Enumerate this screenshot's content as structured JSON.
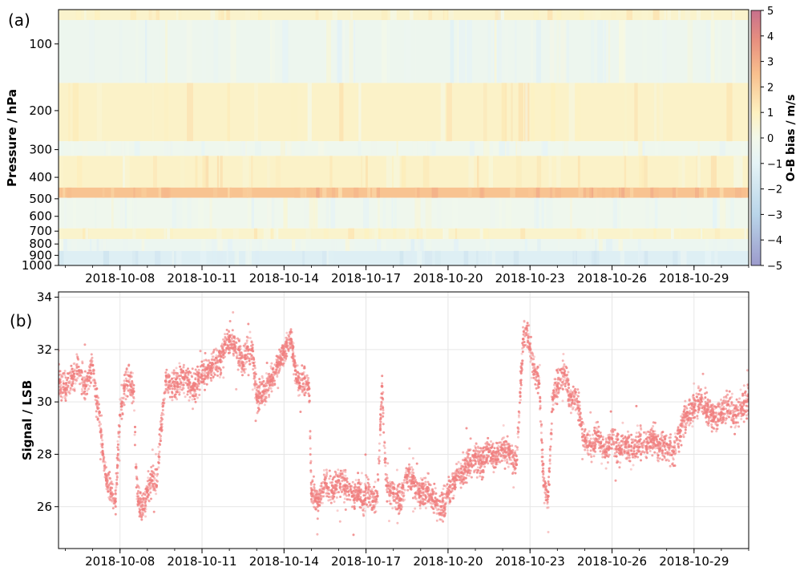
{
  "chart_data": [
    {
      "type": "heatmap",
      "panel_label": "(a)",
      "ylabel": "Pressure / hPa",
      "yscale": "log",
      "yaxis_inverted": true,
      "ylim": [
        1000,
        70
      ],
      "y_ticks": [
        100,
        200,
        300,
        400,
        500,
        600,
        700,
        800,
        900,
        1000
      ],
      "xlim": [
        "2018-10-05T18:00",
        "2018-10-31T00:00"
      ],
      "x_ticks": [
        "2018-10-08",
        "2018-10-11",
        "2018-10-14",
        "2018-10-17",
        "2018-10-20",
        "2018-10-23",
        "2018-10-26",
        "2018-10-29"
      ],
      "colorbar": {
        "label": "O-B bias / m/s",
        "range": [
          -5,
          5
        ],
        "ticks": [
          5,
          4,
          3,
          2,
          1,
          0,
          -1,
          -2,
          -3,
          -4,
          -5
        ],
        "colormap": "RdYlBu_r (semi-transparent)"
      },
      "layers": [
        {
          "p_top": 70,
          "p_bottom": 78,
          "bias": 0.7
        },
        {
          "p_top": 78,
          "p_bottom": 150,
          "bias": -0.4
        },
        {
          "p_top": 150,
          "p_bottom": 275,
          "bias": 0.8
        },
        {
          "p_top": 275,
          "p_bottom": 320,
          "bias": -0.3
        },
        {
          "p_top": 320,
          "p_bottom": 445,
          "bias": 0.8
        },
        {
          "p_top": 445,
          "p_bottom": 495,
          "bias": 2.4
        },
        {
          "p_top": 495,
          "p_bottom": 680,
          "bias": -0.3
        },
        {
          "p_top": 680,
          "p_bottom": 760,
          "bias": 0.7
        },
        {
          "p_top": 760,
          "p_bottom": 860,
          "bias": -0.5
        },
        {
          "p_top": 860,
          "p_bottom": 1000,
          "bias": -1.3
        }
      ]
    },
    {
      "type": "scatter",
      "panel_label": "(b)",
      "ylabel": "Signal / LSB",
      "ylim": [
        24.4,
        34.2
      ],
      "y_ticks": [
        26,
        28,
        30,
        32,
        34
      ],
      "xlim": [
        "2018-10-05T18:00",
        "2018-10-31T00:00"
      ],
      "x_ticks": [
        "2018-10-08",
        "2018-10-11",
        "2018-10-14",
        "2018-10-17",
        "2018-10-20",
        "2018-10-23",
        "2018-10-26",
        "2018-10-29"
      ],
      "grid": true,
      "point_color": "#f08080",
      "points": [
        [
          "2018-10-05T18:00",
          30.8
        ],
        [
          "2018-10-06T00:00",
          30.5
        ],
        [
          "2018-10-06T06:00",
          30.9
        ],
        [
          "2018-10-06T12:00",
          31.2
        ],
        [
          "2018-10-06T18:00",
          30.6
        ],
        [
          "2018-10-07T00:00",
          31.4
        ],
        [
          "2018-10-07T03:00",
          30.2
        ],
        [
          "2018-10-07T06:00",
          29.6
        ],
        [
          "2018-10-07T09:00",
          28.0
        ],
        [
          "2018-10-07T12:00",
          27.0
        ],
        [
          "2018-10-07T16:00",
          26.5
        ],
        [
          "2018-10-07T20:00",
          26.2
        ],
        [
          "2018-10-08T00:00",
          29.5
        ],
        [
          "2018-10-08T04:00",
          30.6
        ],
        [
          "2018-10-08T08:00",
          31.0
        ],
        [
          "2018-10-08T12:00",
          30.4
        ],
        [
          "2018-10-08T14:00",
          27.5
        ],
        [
          "2018-10-08T16:00",
          26.2
        ],
        [
          "2018-10-08T20:00",
          25.9
        ],
        [
          "2018-10-09T00:00",
          26.6
        ],
        [
          "2018-10-09T04:00",
          27.0
        ],
        [
          "2018-10-09T08:00",
          26.8
        ],
        [
          "2018-10-09T12:00",
          29.0
        ],
        [
          "2018-10-09T16:00",
          30.8
        ],
        [
          "2018-10-10T00:00",
          30.6
        ],
        [
          "2018-10-10T08:00",
          30.9
        ],
        [
          "2018-10-10T16:00",
          30.5
        ],
        [
          "2018-10-11T00:00",
          31.0
        ],
        [
          "2018-10-11T08:00",
          31.3
        ],
        [
          "2018-10-11T16:00",
          31.6
        ],
        [
          "2018-10-11T20:00",
          32.2
        ],
        [
          "2018-10-12T00:00",
          32.3
        ],
        [
          "2018-10-12T08:00",
          32.0
        ],
        [
          "2018-10-12T12:00",
          31.4
        ],
        [
          "2018-10-12T16:00",
          32.1
        ],
        [
          "2018-10-12T20:00",
          32.0
        ],
        [
          "2018-10-13T00:00",
          30.2
        ],
        [
          "2018-10-13T06:00",
          30.4
        ],
        [
          "2018-10-13T12:00",
          30.8
        ],
        [
          "2018-10-13T18:00",
          31.4
        ],
        [
          "2018-10-14T00:00",
          31.9
        ],
        [
          "2018-10-14T06:00",
          32.4
        ],
        [
          "2018-10-14T10:00",
          31.2
        ],
        [
          "2018-10-14T14:00",
          30.6
        ],
        [
          "2018-10-14T18:00",
          30.9
        ],
        [
          "2018-10-14T22:00",
          30.5
        ],
        [
          "2018-10-15T00:00",
          26.5
        ],
        [
          "2018-10-15T06:00",
          26.3
        ],
        [
          "2018-10-15T12:00",
          26.9
        ],
        [
          "2018-10-15T18:00",
          26.6
        ],
        [
          "2018-10-16T00:00",
          27.0
        ],
        [
          "2018-10-16T06:00",
          26.8
        ],
        [
          "2018-10-16T12:00",
          26.4
        ],
        [
          "2018-10-16T18:00",
          26.6
        ],
        [
          "2018-10-16T22:00",
          26.1
        ],
        [
          "2018-10-17T00:00",
          26.7
        ],
        [
          "2018-10-17T06:00",
          26.2
        ],
        [
          "2018-10-17T10:00",
          26.4
        ],
        [
          "2018-10-17T14:00",
          30.6
        ],
        [
          "2018-10-17T18:00",
          26.8
        ],
        [
          "2018-10-18T00:00",
          26.5
        ],
        [
          "2018-10-18T06:00",
          26.3
        ],
        [
          "2018-10-18T12:00",
          27.2
        ],
        [
          "2018-10-18T18:00",
          26.9
        ],
        [
          "2018-10-19T00:00",
          26.4
        ],
        [
          "2018-10-19T06:00",
          26.6
        ],
        [
          "2018-10-19T12:00",
          26.2
        ],
        [
          "2018-10-19T18:00",
          26.0
        ],
        [
          "2018-10-20T00:00",
          26.5
        ],
        [
          "2018-10-20T06:00",
          27.1
        ],
        [
          "2018-10-20T12:00",
          27.3
        ],
        [
          "2018-10-20T18:00",
          27.6
        ],
        [
          "2018-10-21T00:00",
          27.9
        ],
        [
          "2018-10-21T06:00",
          27.7
        ],
        [
          "2018-10-21T12:00",
          28.1
        ],
        [
          "2018-10-21T18:00",
          27.8
        ],
        [
          "2018-10-22T00:00",
          28.2
        ],
        [
          "2018-10-22T06:00",
          28.0
        ],
        [
          "2018-10-22T12:00",
          27.6
        ],
        [
          "2018-10-22T18:00",
          32.4
        ],
        [
          "2018-10-22T21:00",
          32.8
        ],
        [
          "2018-10-23T00:00",
          32.0
        ],
        [
          "2018-10-23T04:00",
          31.2
        ],
        [
          "2018-10-23T08:00",
          30.7
        ],
        [
          "2018-10-23T12:00",
          26.8
        ],
        [
          "2018-10-23T16:00",
          26.4
        ],
        [
          "2018-10-23T20:00",
          30.1
        ],
        [
          "2018-10-24T00:00",
          30.6
        ],
        [
          "2018-10-24T06:00",
          31.1
        ],
        [
          "2018-10-24T12:00",
          30.2
        ],
        [
          "2018-10-24T18:00",
          30.0
        ],
        [
          "2018-10-25T00:00",
          28.5
        ],
        [
          "2018-10-25T06:00",
          28.3
        ],
        [
          "2018-10-25T12:00",
          28.7
        ],
        [
          "2018-10-25T18:00",
          28.1
        ],
        [
          "2018-10-26T00:00",
          28.6
        ],
        [
          "2018-10-26T06:00",
          28.2
        ],
        [
          "2018-10-26T12:00",
          28.4
        ],
        [
          "2018-10-26T18:00",
          28.0
        ],
        [
          "2018-10-27T00:00",
          28.5
        ],
        [
          "2018-10-27T06:00",
          28.3
        ],
        [
          "2018-10-27T12:00",
          28.6
        ],
        [
          "2018-10-27T18:00",
          28.2
        ],
        [
          "2018-10-28T00:00",
          28.4
        ],
        [
          "2018-10-28T06:00",
          28.1
        ],
        [
          "2018-10-28T12:00",
          28.9
        ],
        [
          "2018-10-28T18:00",
          29.6
        ],
        [
          "2018-10-29T00:00",
          29.8
        ],
        [
          "2018-10-29T06:00",
          30.1
        ],
        [
          "2018-10-29T12:00",
          29.7
        ],
        [
          "2018-10-29T18:00",
          29.4
        ],
        [
          "2018-10-30T00:00",
          29.6
        ],
        [
          "2018-10-30T06:00",
          29.9
        ],
        [
          "2018-10-30T12:00",
          29.5
        ],
        [
          "2018-10-30T18:00",
          29.8
        ],
        [
          "2018-10-31T00:00",
          30.1
        ]
      ]
    }
  ]
}
